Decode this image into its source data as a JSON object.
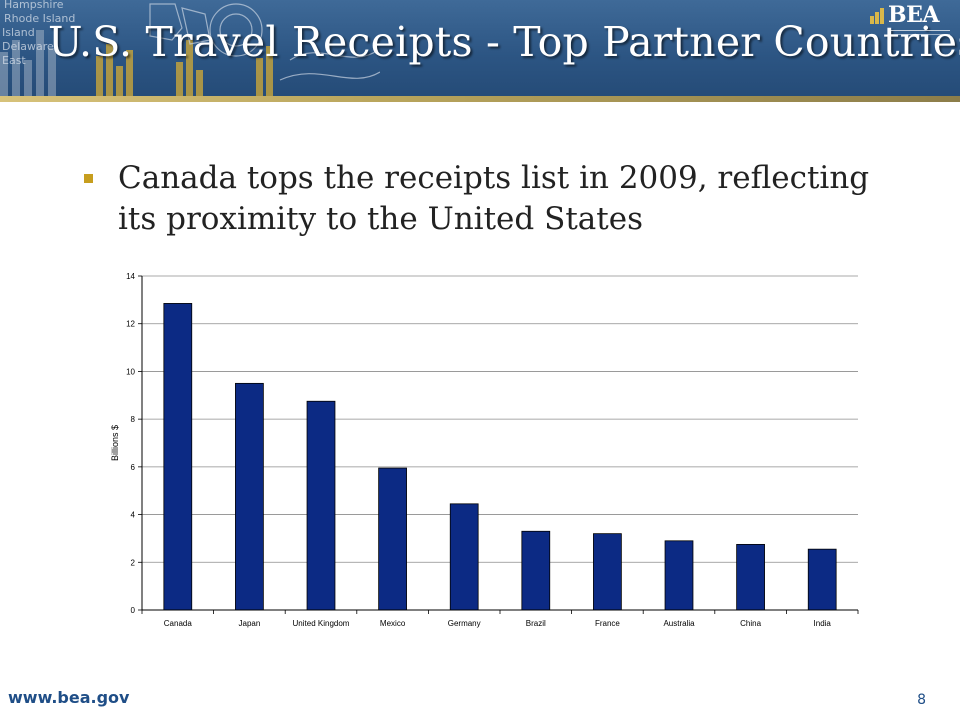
{
  "header": {
    "title": "U.S. Travel Receipts - Top Partner Countries",
    "logo_text": "BEA",
    "banner_text": [
      "Hampshire",
      "Rhode Island",
      "Island",
      "Delaware",
      "East"
    ],
    "colors": {
      "banner": "#2c5583",
      "stripe": "#b9a55c",
      "title": "#ffffff"
    }
  },
  "bullet": {
    "text": "Canada tops the receipts list in 2009, reflecting its proximity to the United States",
    "marker_color": "#c79e1e"
  },
  "chart_data": {
    "type": "bar",
    "categories": [
      "Canada",
      "Japan",
      "United Kingdom",
      "Mexico",
      "Germany",
      "Brazil",
      "France",
      "Australia",
      "China",
      "India"
    ],
    "values": [
      12.85,
      9.5,
      8.75,
      5.95,
      4.45,
      3.3,
      3.2,
      2.9,
      2.75,
      2.55
    ],
    "title": "",
    "xlabel": "",
    "ylabel": "Billions $",
    "ylim": [
      0,
      14
    ],
    "yticks": [
      0,
      2,
      4,
      6,
      8,
      10,
      12,
      14
    ],
    "grid": true,
    "bar_color": "#0c2a84"
  },
  "footer": {
    "url": "www.bea.gov",
    "page_number": "8"
  }
}
